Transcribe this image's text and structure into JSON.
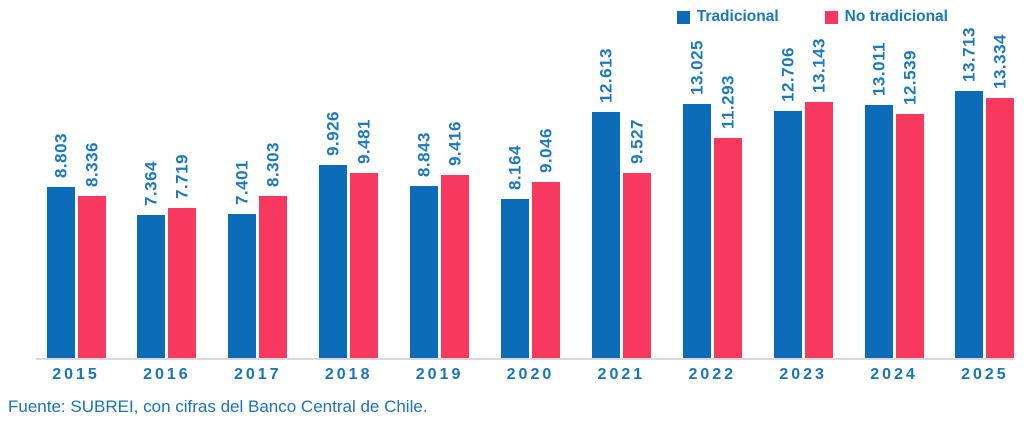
{
  "chart_data": {
    "type": "bar",
    "categories": [
      "2015",
      "2016",
      "2017",
      "2018",
      "2019",
      "2020",
      "2021",
      "2022",
      "2023",
      "2024",
      "2025"
    ],
    "series": [
      {
        "name": "Tradicional",
        "color": "#0c6cb8",
        "values": [
          8803,
          7364,
          7401,
          9926,
          8843,
          8164,
          12613,
          13025,
          12706,
          13011,
          13713
        ],
        "labels": [
          "8.803",
          "7.364",
          "7.401",
          "9.926",
          "8.843",
          "8.164",
          "12.613",
          "13.025",
          "12.706",
          "13.011",
          "13.713"
        ]
      },
      {
        "name": "No tradicional",
        "color": "#f8395f",
        "values": [
          8336,
          7719,
          8303,
          9481,
          9416,
          9046,
          9527,
          11293,
          13143,
          12539,
          13334
        ],
        "labels": [
          "8.336",
          "7.719",
          "8.303",
          "9.481",
          "9.416",
          "9.046",
          "9.527",
          "11.293",
          "13.143",
          "12.539",
          "13.334"
        ]
      }
    ],
    "title": "",
    "xlabel": "",
    "ylabel": "",
    "ylim": [
      0,
      14000
    ],
    "grid": false,
    "legend_position": "top-right",
    "value_label_rotation": 90,
    "value_format": "thousands-dot"
  },
  "colors": {
    "bar_blue": "#0c6cb8",
    "bar_pink": "#f8395f",
    "value_text": "#1c79bd",
    "axis_text": "#1974b8",
    "axis_line": "#d9d9d9"
  },
  "footer": {
    "source": "Fuente: SUBREI, con cifras del Banco Central de Chile."
  }
}
